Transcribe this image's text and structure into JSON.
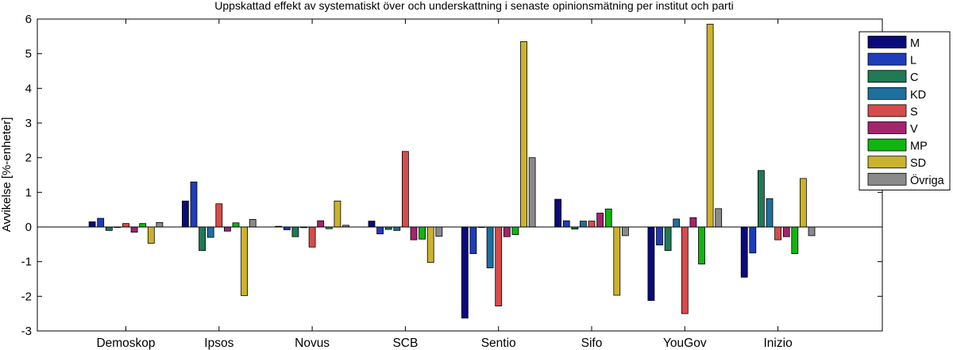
{
  "chart_data": {
    "type": "bar",
    "title": "Uppskattad effekt av systematiskt över och underskattning i senaste opinionsmätning per institut och parti",
    "xlabel": "",
    "ylabel": "Avvikelse [%-enheter]",
    "ylim": [
      -3,
      6
    ],
    "yticks": [
      "-3",
      "-2",
      "-1",
      "0",
      "1",
      "2",
      "3",
      "4",
      "5",
      "6"
    ],
    "grid": false,
    "legend_position": "top-right",
    "categories": [
      "Demoskop",
      "Ipsos",
      "Novus",
      "SCB",
      "Sentio",
      "Sifo",
      "YouGov",
      "Inizio"
    ],
    "series": [
      {
        "name": "M",
        "color": "#0a0a7a",
        "values": [
          0.15,
          0.75,
          0.02,
          0.17,
          -2.63,
          0.8,
          -2.12,
          -1.45
        ]
      },
      {
        "name": "L",
        "color": "#1f3dbb",
        "values": [
          0.25,
          1.3,
          -0.08,
          -0.2,
          -0.77,
          0.18,
          -0.52,
          -0.75
        ]
      },
      {
        "name": "C",
        "color": "#1f7a55",
        "values": [
          -0.1,
          -0.68,
          -0.28,
          -0.07,
          0.0,
          -0.06,
          -0.68,
          1.63
        ]
      },
      {
        "name": "KD",
        "color": "#1f6f9e",
        "values": [
          0.0,
          -0.3,
          -0.02,
          -0.1,
          -1.18,
          0.17,
          0.23,
          0.82
        ]
      },
      {
        "name": "S",
        "color": "#d64c4c",
        "values": [
          0.1,
          0.67,
          -0.58,
          2.18,
          -2.28,
          0.17,
          -2.5,
          -0.37
        ]
      },
      {
        "name": "V",
        "color": "#a3256d",
        "values": [
          -0.15,
          -0.12,
          0.18,
          -0.37,
          -0.28,
          0.4,
          0.27,
          -0.28
        ]
      },
      {
        "name": "MP",
        "color": "#11b511",
        "values": [
          0.1,
          0.12,
          -0.05,
          -0.35,
          -0.22,
          0.52,
          -1.07,
          -0.77
        ]
      },
      {
        "name": "SD",
        "color": "#cbb22e",
        "values": [
          -0.47,
          -1.98,
          0.75,
          -1.02,
          5.35,
          -1.97,
          5.85,
          1.4
        ]
      },
      {
        "name": "Övriga",
        "color": "#8a8a8a",
        "values": [
          0.13,
          0.22,
          0.05,
          -0.27,
          2.0,
          -0.25,
          0.53,
          -0.25
        ]
      }
    ]
  }
}
